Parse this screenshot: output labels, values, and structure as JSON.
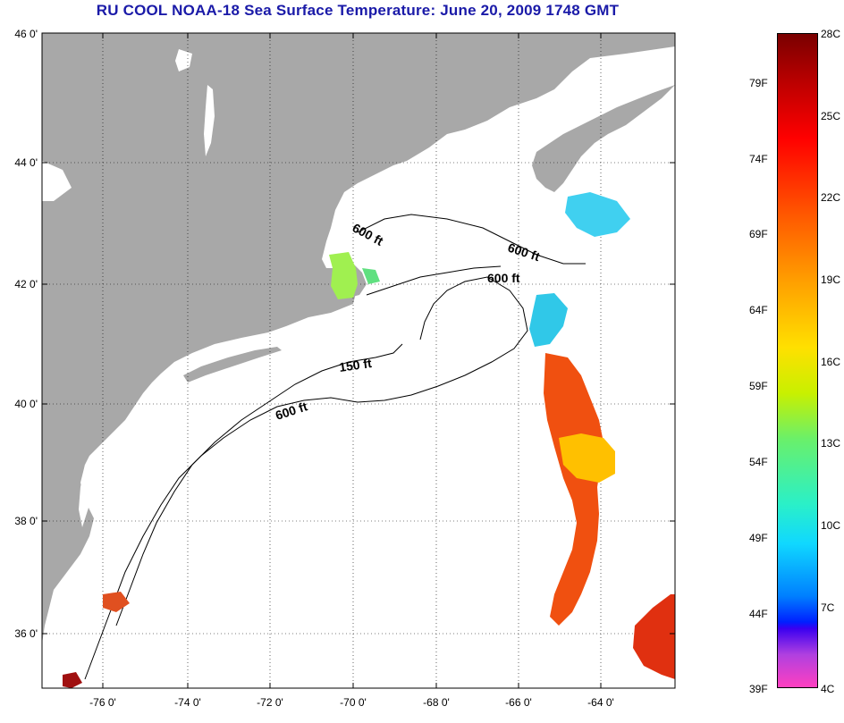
{
  "title": "RU COOL  NOAA-18  Sea Surface Temperature:  June 20, 2009 1748 GMT",
  "lat_ticks": [
    "46 0'",
    "44 0'",
    "42 0'",
    "40 0'",
    "38 0'",
    "36 0'"
  ],
  "lon_ticks": [
    "-76 0'",
    "-74 0'",
    "-72 0'",
    "-70 0'",
    "-68 0'",
    "-66 0'",
    "-64 0'"
  ],
  "contour_labels": {
    "gom_north": "600 ft",
    "gom_east": "600 ft",
    "georges": "600 ft",
    "shelf_150": "150 ft",
    "shelf_600": "600 ft"
  },
  "colorbar": {
    "celsius": [
      "28C",
      "25C",
      "22C",
      "19C",
      "16C",
      "13C",
      "10C",
      "7C",
      "4C"
    ],
    "fahrenheit": [
      "79F",
      "74F",
      "69F",
      "64F",
      "59F",
      "54F",
      "49F",
      "44F",
      "39F"
    ]
  },
  "colors": {
    "land": "#a8a8a8",
    "title": "#1a1aa8"
  }
}
